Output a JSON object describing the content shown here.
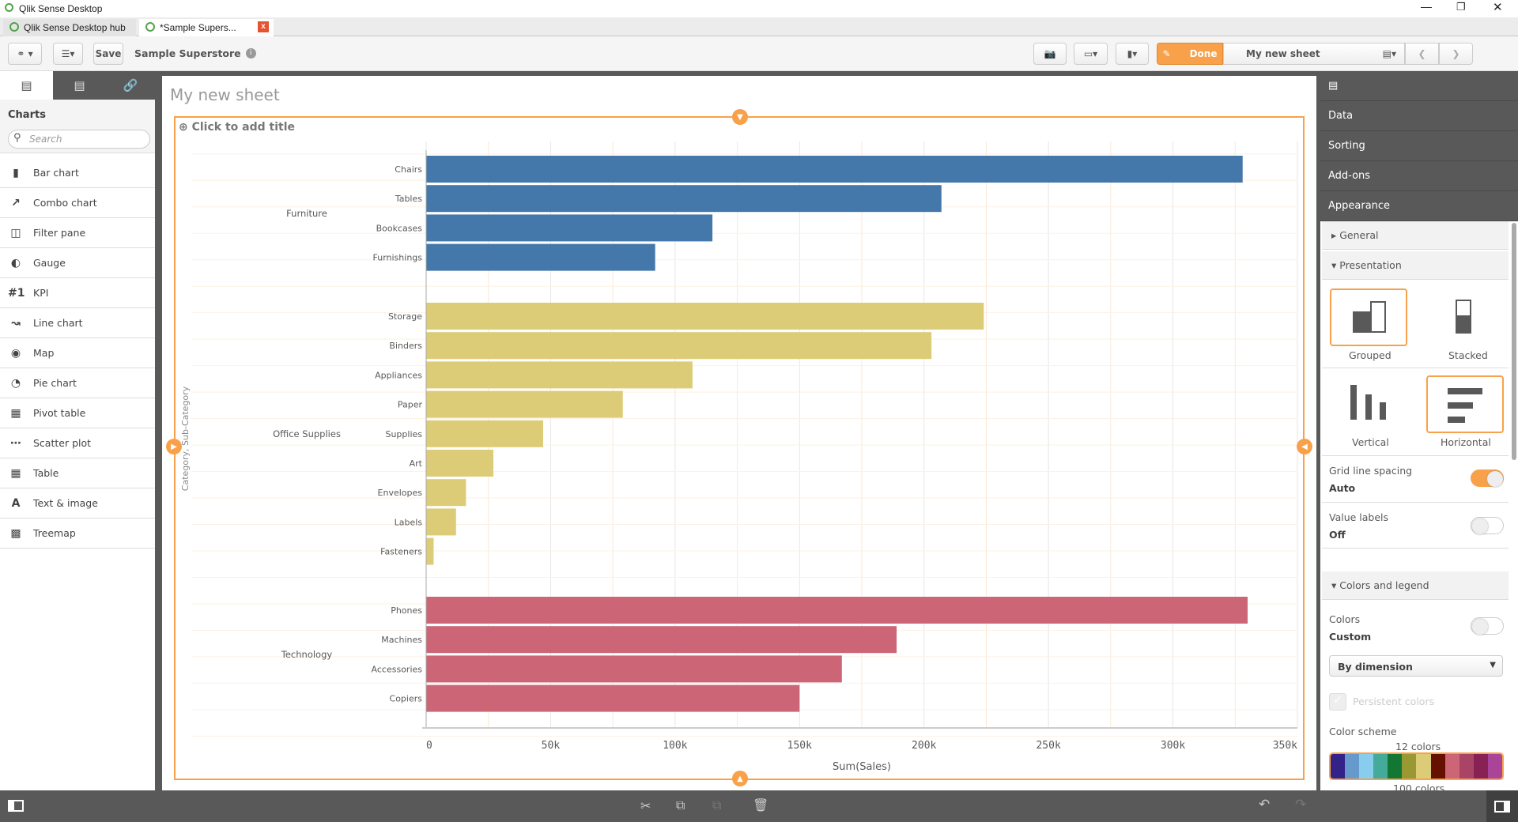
{
  "window": {
    "title": "Qlik Sense Desktop"
  },
  "tabs": [
    {
      "label": "Qlik Sense Desktop hub"
    },
    {
      "label": "*Sample Supers...",
      "close": "x"
    }
  ],
  "toolbar": {
    "save_label": "Save",
    "app_name": "Sample Superstore",
    "done_label": "Done",
    "sheet_name": "My new sheet"
  },
  "left_panel": {
    "section": "Charts",
    "search_placeholder": "Search",
    "items": [
      {
        "label": "Bar chart",
        "icon": "bar-chart-icon"
      },
      {
        "label": "Combo chart",
        "icon": "combo-chart-icon"
      },
      {
        "label": "Filter pane",
        "icon": "filter-pane-icon"
      },
      {
        "label": "Gauge",
        "icon": "gauge-icon"
      },
      {
        "label": "KPI",
        "icon": "kpi-icon"
      },
      {
        "label": "Line chart",
        "icon": "line-chart-icon"
      },
      {
        "label": "Map",
        "icon": "map-icon"
      },
      {
        "label": "Pie chart",
        "icon": "pie-chart-icon"
      },
      {
        "label": "Pivot table",
        "icon": "pivot-table-icon"
      },
      {
        "label": "Scatter plot",
        "icon": "scatter-plot-icon"
      },
      {
        "label": "Table",
        "icon": "table-icon"
      },
      {
        "label": "Text & image",
        "icon": "text-image-icon"
      },
      {
        "label": "Treemap",
        "icon": "treemap-icon"
      }
    ],
    "kpi_glyph": "#1",
    "text_glyph": "A"
  },
  "sheet": {
    "title": "My new sheet",
    "add_title": "Click to add title"
  },
  "right_panel": {
    "sections": [
      "Data",
      "Sorting",
      "Add-ons",
      "Appearance"
    ],
    "general": "General",
    "presentation": "Presentation",
    "grouped": "Grouped",
    "stacked": "Stacked",
    "vertical": "Vertical",
    "horizontal": "Horizontal",
    "grid_label": "Grid line spacing",
    "grid_value": "Auto",
    "grid_on": true,
    "value_labels": "Value labels",
    "value_labels_value": "Off",
    "value_labels_on": false,
    "colors_legend": "Colors and legend",
    "colors": "Colors",
    "colors_value": "Custom",
    "colors_on": false,
    "color_mode": "By dimension",
    "persistent": "Persistent colors",
    "color_scheme": "Color scheme",
    "scheme_12": "12 colors",
    "scheme_100": "100 colors",
    "scheme_colors": [
      "#332288",
      "#6699cc",
      "#88ccee",
      "#44aa99",
      "#117733",
      "#999933",
      "#ddcc77",
      "#661100",
      "#cc6677",
      "#aa4466",
      "#882255",
      "#aa4499"
    ]
  },
  "chart_data": {
    "type": "bar",
    "orientation": "horizontal",
    "title": "",
    "xlabel": "Sum(Sales)",
    "ylabel": "Category, Sub-Category",
    "xlim": [
      0,
      350000
    ],
    "ticks": [
      "0",
      "50k",
      "100k",
      "150k",
      "200k",
      "250k",
      "300k",
      "350k"
    ],
    "grid": true,
    "groups": [
      {
        "name": "Furniture",
        "color": "#4477aa",
        "categories": [
          "Chairs",
          "Tables",
          "Bookcases",
          "Furnishings"
        ],
        "values": [
          328000,
          207000,
          115000,
          92000
        ]
      },
      {
        "name": "Office Supplies",
        "color": "#ddcc77",
        "categories": [
          "Storage",
          "Binders",
          "Appliances",
          "Paper",
          "Supplies",
          "Art",
          "Envelopes",
          "Labels",
          "Fasteners"
        ],
        "values": [
          224000,
          203000,
          107000,
          79000,
          47000,
          27000,
          16000,
          12000,
          3000
        ]
      },
      {
        "name": "Technology",
        "color": "#cc6677",
        "categories": [
          "Phones",
          "Machines",
          "Accessories",
          "Copiers"
        ],
        "values": [
          330000,
          189000,
          167000,
          150000
        ]
      }
    ]
  }
}
